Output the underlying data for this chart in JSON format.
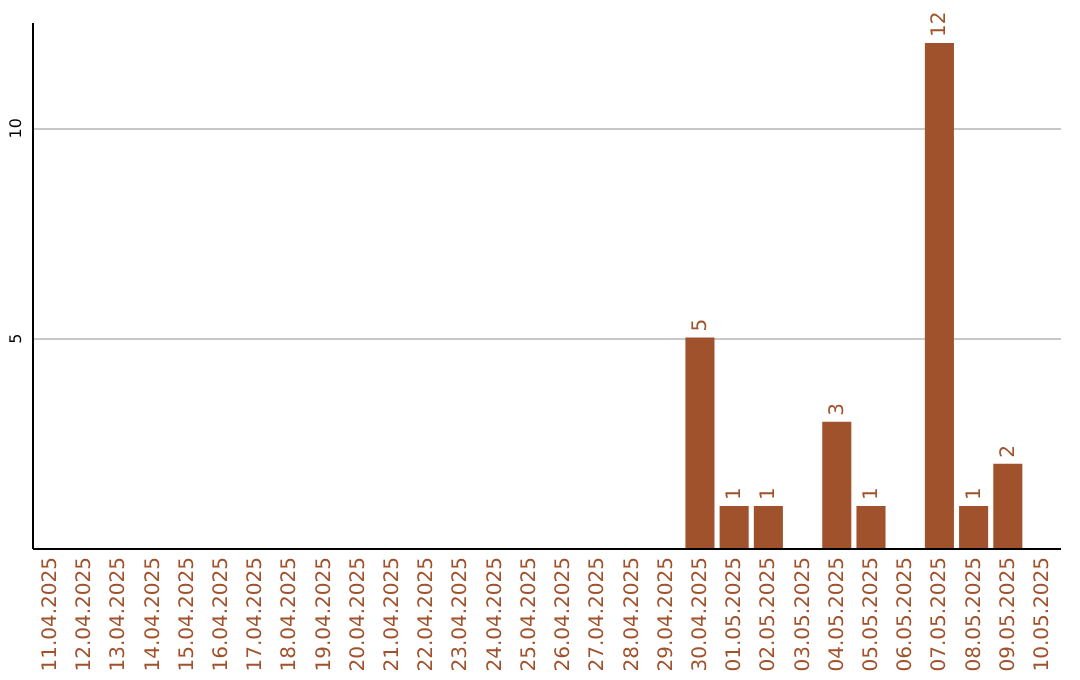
{
  "chart_data": {
    "type": "bar",
    "categories": [
      "11.04.2025",
      "12.04.2025",
      "13.04.2025",
      "14.04.2025",
      "15.04.2025",
      "16.04.2025",
      "17.04.2025",
      "18.04.2025",
      "19.04.2025",
      "20.04.2025",
      "21.04.2025",
      "22.04.2025",
      "23.04.2025",
      "24.04.2025",
      "25.04.2025",
      "26.04.2025",
      "27.04.2025",
      "28.04.2025",
      "29.04.2025",
      "30.04.2025",
      "01.05.2025",
      "02.05.2025",
      "03.05.2025",
      "04.05.2025",
      "05.05.2025",
      "06.05.2025",
      "07.05.2025",
      "08.05.2025",
      "09.05.2025",
      "10.05.2025"
    ],
    "values": [
      0,
      0,
      0,
      0,
      0,
      0,
      0,
      0,
      0,
      0,
      0,
      0,
      0,
      0,
      0,
      0,
      0,
      0,
      0,
      5,
      1,
      1,
      0,
      3,
      1,
      0,
      12,
      1,
      2,
      0
    ],
    "value_labels": [
      null,
      null,
      null,
      null,
      null,
      null,
      null,
      null,
      null,
      null,
      null,
      null,
      null,
      null,
      null,
      null,
      null,
      null,
      null,
      "5",
      "1",
      "1",
      null,
      "3",
      "1",
      null,
      "12",
      "1",
      "2",
      null
    ],
    "color": "#a0522d",
    "ylim": [
      0,
      12.5
    ],
    "yticks": [
      5,
      10
    ],
    "grid": "y"
  }
}
